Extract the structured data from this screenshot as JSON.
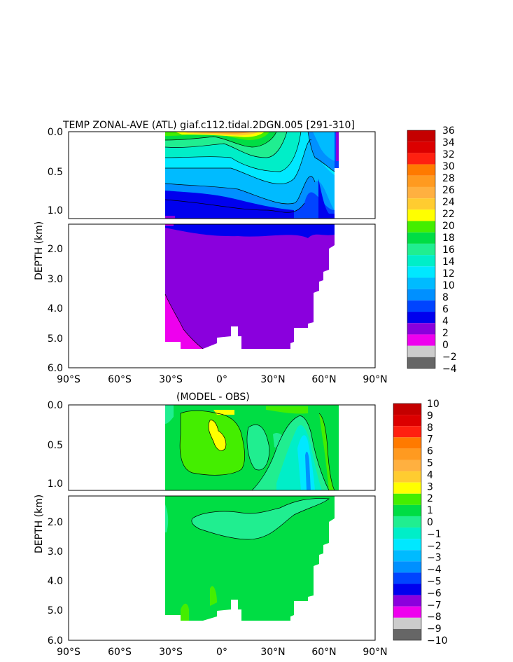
{
  "chart_data": [
    {
      "type": "heatmap",
      "title": "TEMP ZONAL-AVE (ATL) giaf.c112.tidal.2DGN.005 [291-310]",
      "ylabel": "DEPTH (km)",
      "x_ticks": [
        "90°S",
        "60°S",
        "30°S",
        "0°",
        "30°N",
        "60°N",
        "90°N"
      ],
      "y_ticks": [
        "0.0",
        "0.5",
        "1.0",
        "2.0",
        "3.0",
        "4.0",
        "5.0",
        "6.0"
      ],
      "legend": {
        "labels": [
          "36",
          "34",
          "32",
          "30",
          "28",
          "26",
          "24",
          "22",
          "20",
          "18",
          "16",
          "14",
          "12",
          "10",
          "8",
          "6",
          "4",
          "2",
          "0",
          "−2",
          "−4"
        ],
        "colors": [
          "#c40000",
          "#dc0000",
          "#ff2010",
          "#ff7a00",
          "#ff9a20",
          "#ffb040",
          "#ffcc30",
          "#ffff00",
          "#44ee00",
          "#00dd44",
          "#20ee90",
          "#00eec8",
          "#00e8ff",
          "#00bbff",
          "#0090ff",
          "#0044ff",
          "#0000ee",
          "#8a00dd",
          "#ee00ee",
          "#cccccc",
          "#666666"
        ]
      }
    },
    {
      "type": "heatmap",
      "title": "(MODEL - OBS)",
      "ylabel": "DEPTH (km)",
      "x_ticks": [
        "90°S",
        "60°S",
        "30°S",
        "0°",
        "30°N",
        "60°N",
        "90°N"
      ],
      "y_ticks": [
        "0.0",
        "0.5",
        "1.0",
        "2.0",
        "3.0",
        "4.0",
        "5.0",
        "6.0"
      ],
      "legend": {
        "labels": [
          "10",
          "9",
          "8",
          "7",
          "6",
          "5",
          "4",
          "3",
          "2",
          "1",
          "0",
          "−1",
          "−2",
          "−3",
          "−4",
          "−5",
          "−6",
          "−7",
          "−8",
          "−9",
          "−10"
        ],
        "colors": [
          "#c40000",
          "#dc0000",
          "#ff2010",
          "#ff7a00",
          "#ff9a20",
          "#ffb040",
          "#ffcc30",
          "#ffff00",
          "#44ee00",
          "#00dd44",
          "#20ee90",
          "#00eec8",
          "#00e8ff",
          "#00bbff",
          "#0090ff",
          "#0044ff",
          "#0000ee",
          "#8a00dd",
          "#ee00ee",
          "#cccccc",
          "#666666"
        ]
      }
    }
  ]
}
